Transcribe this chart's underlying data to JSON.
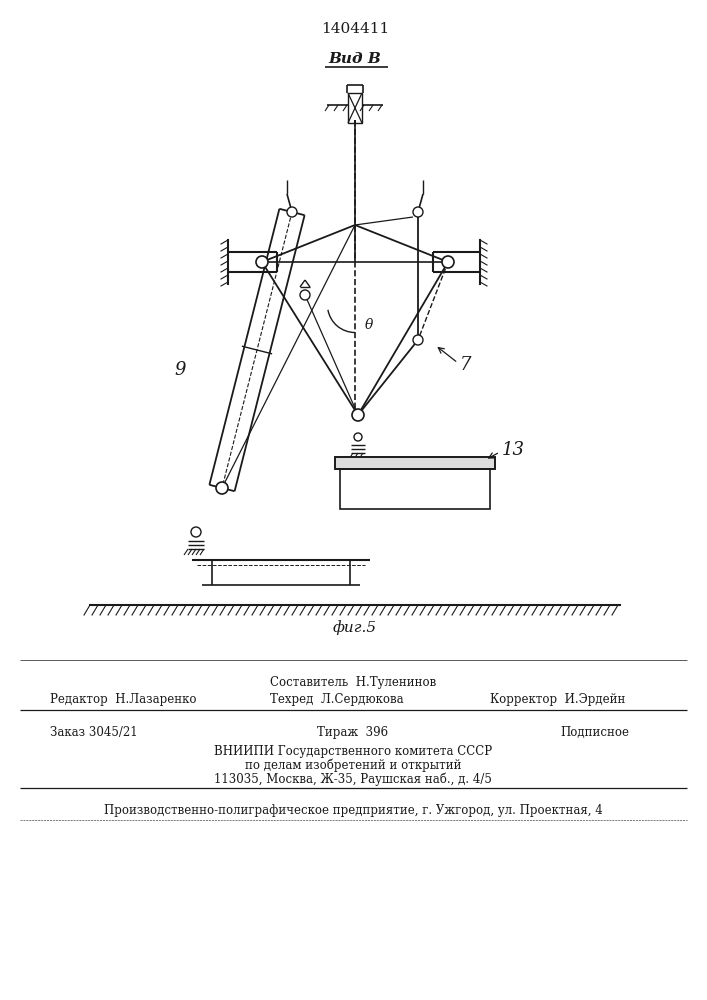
{
  "title": "1404411",
  "vid_b_label": "Вид В",
  "fig_label": "фиг.5",
  "label_9": "9",
  "label_7": "7",
  "label_13": "13",
  "label_theta": "θ",
  "editor_line": "Редактор  Н.Лазаренко",
  "compiler_line": "Составитель  Н.Туленинов",
  "tech_line": "Техред  Л.Сердюкова",
  "corrector_line": "Корректор  И.Эрдейн",
  "order_line": "Заказ 3045/21",
  "tirazh_line": "Тираж  396",
  "podpisnoe_line": "Подписное",
  "vniip_line1": "ВНИИПИ Государственного комитета СССР",
  "vniip_line2": "по делам изобретений и открытий",
  "vniip_line3": "113035, Москва, Ж-35, Раушская наб., д. 4/5",
  "factory_line": "Производственно-полиграфическое предприятие, г. Ужгород, ул. Проектная, 4",
  "bg_color": "#ffffff",
  "line_color": "#1a1a1a"
}
